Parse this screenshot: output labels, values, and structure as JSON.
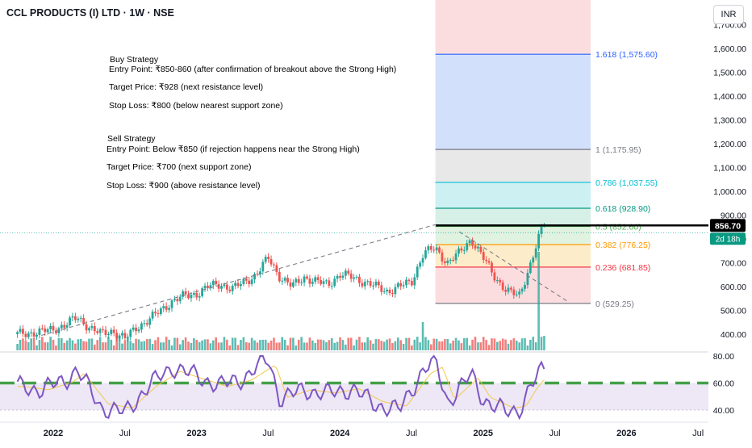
{
  "header": {
    "symbol_title": "CCL PRODUCTS (I) LTD · 1W · NSE",
    "currency_button": "INR"
  },
  "notes": {
    "buy": [
      "Buy Strategy",
      "Entry Point: ₹850-860 (after confirmation of breakout above the Strong High)",
      "Target Price: ₹928 (next resistance level)",
      "Stop Loss: ₹800 (below nearest support zone)"
    ],
    "sell": [
      "Sell Strategy",
      "Entry Point: Below ₹850 (if rejection happens near the Strong High)",
      "Target Price: ₹700 (next support zone)",
      "Stop Loss: ₹900 (above resistance level)"
    ]
  },
  "colors": {
    "up": "#26a69a",
    "down": "#ef5350",
    "rsi": "#7e57c2",
    "rsi_ma": "#f2c94c",
    "rsi_band": "#ede7f6",
    "level_dash": "#43a047"
  },
  "chart_data": [
    {
      "type": "candlestick",
      "x_ticks": [
        "2022",
        "Jul",
        "2023",
        "Jul",
        "2024",
        "Jul",
        "2025",
        "Jul",
        "2026",
        "Jul"
      ],
      "y_ticks": [
        400,
        500,
        600,
        700,
        800,
        900,
        1000,
        1100,
        1200,
        1300,
        1400,
        1500,
        1600,
        1700
      ],
      "y_tick_labels": [
        "400.00",
        "500.00",
        "600.00",
        "700.00",
        "800.00",
        "900.00",
        "1,000.00",
        "1,100.00",
        "1,200.00",
        "1,300.00",
        "1,400.00",
        "1,500.00",
        "1,600.00",
        "1,700.00"
      ],
      "ylim": [
        385,
        1700
      ],
      "last_price": 856.7,
      "last_price_label": "856.70",
      "countdown_label": "2d 18h",
      "close_path": [
        [
          "2021-10",
          400
        ],
        [
          "2021-12",
          410
        ],
        [
          "2022-01",
          420
        ],
        [
          "2022-02",
          440
        ],
        [
          "2022-03",
          470
        ],
        [
          "2022-04",
          430
        ],
        [
          "2022-05",
          400
        ],
        [
          "2022-06",
          415
        ],
        [
          "2022-07",
          380
        ],
        [
          "2022-08",
          430
        ],
        [
          "2022-09",
          460
        ],
        [
          "2022-10",
          500
        ],
        [
          "2022-11",
          540
        ],
        [
          "2022-12",
          560
        ],
        [
          "2023-01",
          570
        ],
        [
          "2023-02",
          600
        ],
        [
          "2023-03",
          610
        ],
        [
          "2023-04",
          590
        ],
        [
          "2023-05",
          620
        ],
        [
          "2023-06",
          650
        ],
        [
          "2023-07",
          720
        ],
        [
          "2023-08",
          640
        ],
        [
          "2023-09",
          600
        ],
        [
          "2023-10",
          640
        ],
        [
          "2023-11",
          620
        ],
        [
          "2023-12",
          610
        ],
        [
          "2024-01",
          650
        ],
        [
          "2024-02",
          640
        ],
        [
          "2024-03",
          620
        ],
        [
          "2024-04",
          600
        ],
        [
          "2024-05",
          580
        ],
        [
          "2024-06",
          600
        ],
        [
          "2024-07",
          620
        ],
        [
          "2024-08",
          740
        ],
        [
          "2024-09",
          760
        ],
        [
          "2024-10",
          700
        ],
        [
          "2024-11",
          740
        ],
        [
          "2024-12",
          800
        ],
        [
          "2025-01",
          720
        ],
        [
          "2025-02",
          640
        ],
        [
          "2025-03",
          580
        ],
        [
          "2025-04",
          560
        ],
        [
          "2025-05",
          700
        ],
        [
          "2025-06",
          857
        ]
      ],
      "trendlines": [
        {
          "from": [
            "2021-12",
            395
          ],
          "to": [
            "2024-09",
            860
          ]
        },
        {
          "from": [
            "2024-11",
            830
          ],
          "to": [
            "2025-08",
            540
          ]
        }
      ],
      "fib_levels": [
        {
          "ratio": 1.618,
          "price": 1575.6,
          "label": "1.618 (1,575.60)",
          "line": "#2962ff",
          "zone": "#d3e0fc"
        },
        {
          "ratio": 1,
          "price": 1175.95,
          "label": "1 (1,175.95)",
          "line": "#787b86",
          "zone": "#e8e8e8"
        },
        {
          "ratio": 0.786,
          "price": 1037.55,
          "label": "0.786 (1,037.55)",
          "line": "#00bcd4",
          "zone": "#cdf1f3"
        },
        {
          "ratio": 0.618,
          "price": 928.9,
          "label": "0.618 (928.90)",
          "line": "#089981",
          "zone": "#d6efe7"
        },
        {
          "ratio": 0.5,
          "price": 852.6,
          "label": "0.5 (852.60)",
          "line": "#4caf50",
          "zone": "#e0f2e0"
        },
        {
          "ratio": 0.382,
          "price": 776.25,
          "label": "0.382 (776.25)",
          "line": "#ff9800",
          "zone": "#fdecc9"
        },
        {
          "ratio": 0.236,
          "price": 681.85,
          "label": "0.236 (681.85)",
          "line": "#f23645",
          "zone": "#fbdde0"
        },
        {
          "ratio": 0,
          "price": 529.25,
          "label": "0 (529.25)",
          "line": "#787b86",
          "zone": "#fbdde0"
        }
      ],
      "fib_span": {
        "from": "2024-09",
        "to": "2025-10"
      }
    },
    {
      "type": "line",
      "name": "RSI",
      "y_ticks": [
        40,
        60,
        80
      ],
      "y_tick_labels": [
        "40.00",
        "60.00",
        "80.00"
      ],
      "ylim": [
        30,
        85
      ],
      "band": [
        40,
        60
      ],
      "threshold": 60,
      "rsi_path": [
        [
          "2021-10",
          58
        ],
        [
          "2021-12",
          55
        ],
        [
          "2022-02",
          62
        ],
        [
          "2022-03",
          70
        ],
        [
          "2022-05",
          42
        ],
        [
          "2022-07",
          38
        ],
        [
          "2022-09",
          58
        ],
        [
          "2022-11",
          72
        ],
        [
          "2023-01",
          65
        ],
        [
          "2023-03",
          58
        ],
        [
          "2023-05",
          64
        ],
        [
          "2023-07",
          78
        ],
        [
          "2023-08",
          48
        ],
        [
          "2023-10",
          55
        ],
        [
          "2023-12",
          52
        ],
        [
          "2024-02",
          56
        ],
        [
          "2024-04",
          44
        ],
        [
          "2024-06",
          40
        ],
        [
          "2024-08",
          70
        ],
        [
          "2024-09",
          76
        ],
        [
          "2024-10",
          46
        ],
        [
          "2024-12",
          66
        ],
        [
          "2025-01",
          48
        ],
        [
          "2025-03",
          38
        ],
        [
          "2025-04",
          40
        ],
        [
          "2025-05",
          58
        ],
        [
          "2025-06",
          70
        ]
      ]
    }
  ]
}
